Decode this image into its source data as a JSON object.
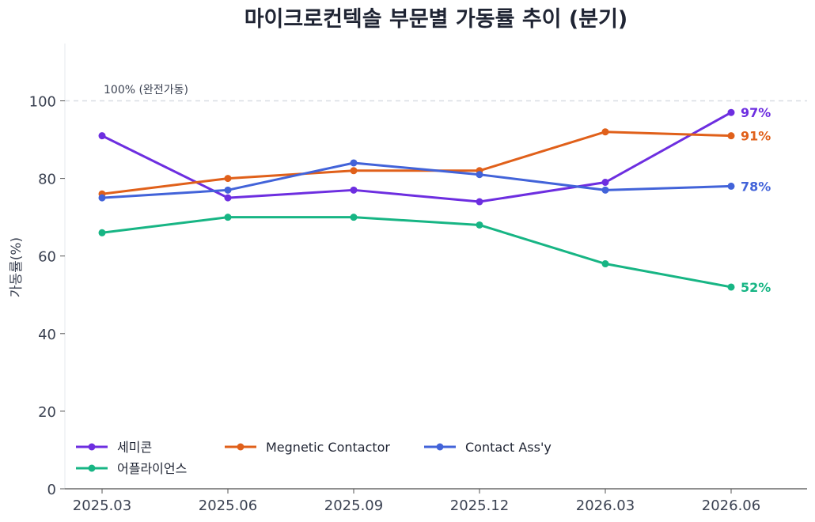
{
  "chart_data": {
    "type": "line",
    "title": "마이크로컨텍솔 부문별 가동률 추이 (분기)",
    "xlabel": "",
    "ylabel": "가동률(%)",
    "x": [
      "2025.03",
      "2025.06",
      "2025.09",
      "2025.12",
      "2026.03",
      "2026.06"
    ],
    "ylim": [
      0,
      115
    ],
    "yticks": [
      0,
      20,
      40,
      60,
      80,
      100
    ],
    "grid": false,
    "legend_position": "lower-left",
    "reference_line": {
      "value": 100,
      "label": "100% (완전가동)",
      "color": "#d9dde3"
    },
    "series": [
      {
        "name": "세미콘",
        "color": "#6d2ee0",
        "values": [
          91,
          75,
          77,
          74,
          79,
          97
        ],
        "end_label": "97%"
      },
      {
        "name": "Megnetic Contactor",
        "color": "#e0601a",
        "values": [
          76,
          80,
          82,
          82,
          92,
          91
        ],
        "end_label": "91%"
      },
      {
        "name": "Contact Ass'y",
        "color": "#4263d9",
        "values": [
          75,
          77,
          84,
          81,
          77,
          78
        ],
        "end_label": "78%"
      },
      {
        "name": "어플라이언스",
        "color": "#17b584",
        "values": [
          66,
          70,
          70,
          68,
          58,
          52
        ],
        "end_label": "52%"
      }
    ]
  }
}
